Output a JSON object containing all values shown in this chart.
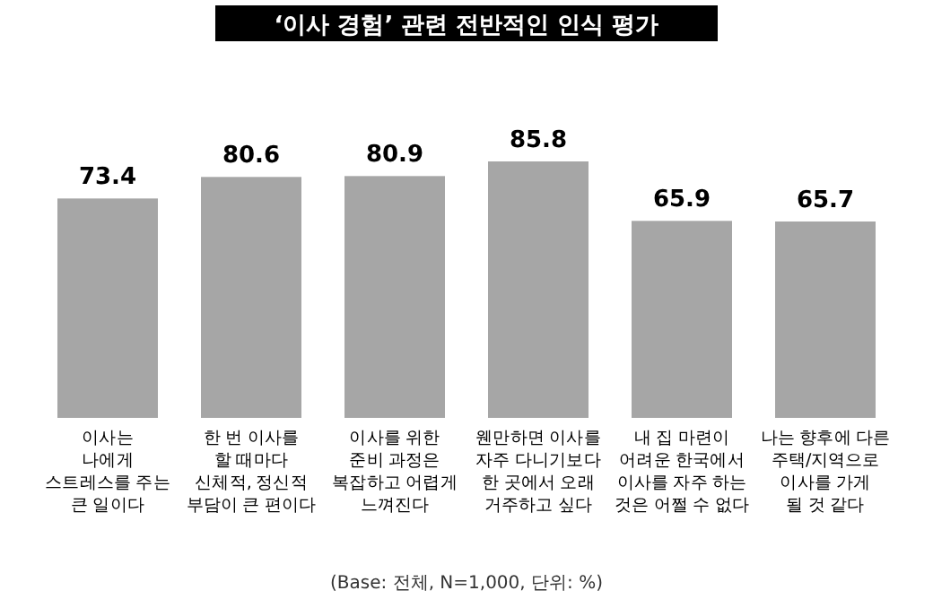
{
  "chart_data": {
    "type": "bar",
    "title": "‘이사 경험’ 관련 전반적인 인식 평가",
    "categories": [
      "이사는\n나에게\n스트레스를 주는\n큰 일이다",
      "한 번 이사를\n할 때마다\n신체적, 정신적\n부담이 큰 편이다",
      "이사를 위한\n준비 과정은\n복잡하고 어렵게\n느껴진다",
      "웬만하면 이사를\n자주 다니기보다\n한 곳에서 오래\n거주하고 싶다",
      "내 집 마련이\n어려운 한국에서\n이사를 자주 하는\n것은 어쩔 수 없다",
      "나는 향후에 다른\n주택/지역으로\n이사를 가게\n될 것 같다"
    ],
    "values": [
      73.4,
      80.6,
      80.9,
      85.8,
      65.9,
      65.7
    ],
    "color": "#a6a6a6",
    "data_labels": true,
    "annotations": [
      "(Base: 전체, N=1,000, 단위: %)"
    ]
  }
}
